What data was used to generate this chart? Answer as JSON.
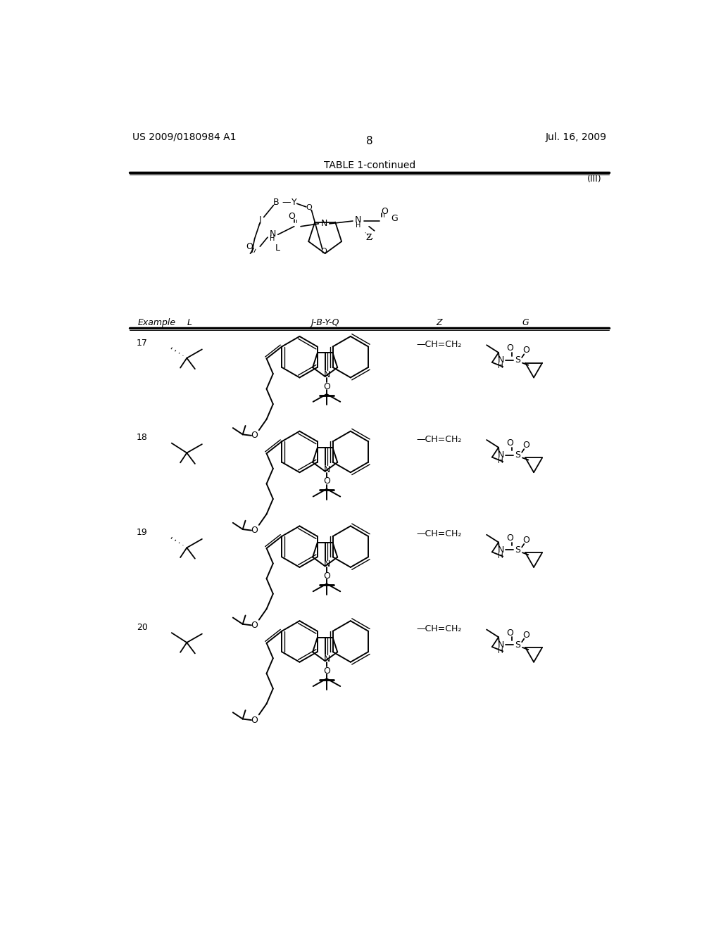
{
  "bg_color": "#ffffff",
  "page_width": 10.24,
  "page_height": 13.2,
  "header_left": "US 2009/0180984 A1",
  "header_right": "Jul. 16, 2009",
  "page_number": "8",
  "table_title": "TABLE 1-continued",
  "roman_numeral": "(III)",
  "col_headers": [
    "Example",
    "L",
    "J-B-Y-Q",
    "Z",
    "G"
  ],
  "examples": [
    "17",
    "18",
    "19",
    "20"
  ],
  "z_label": "—CH=CH₂"
}
